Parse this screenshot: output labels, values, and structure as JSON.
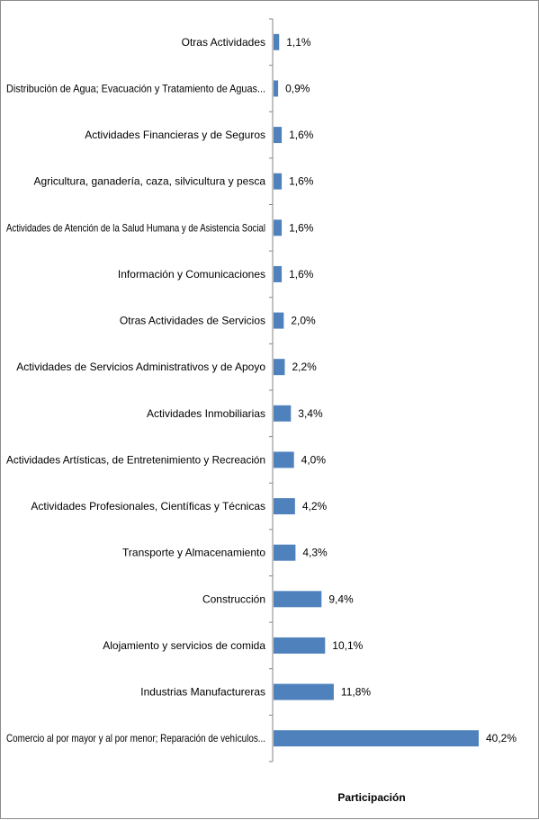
{
  "chart_data": {
    "type": "bar",
    "orientation": "horizontal",
    "categories": [
      "Otras Actividades",
      "Distribución de Agua; Evacuación y Tratamiento de Aguas...",
      "Actividades Financieras y de Seguros",
      "Agricultura, ganadería, caza, silvicultura y pesca",
      "Actividades de Atención de la Salud Humana y de Asistencia Social",
      "Información y Comunicaciones",
      "Otras Actividades de Servicios",
      "Actividades de Servicios Administrativos y de Apoyo",
      "Actividades Inmobiliarias",
      "Actividades Artísticas, de Entretenimiento y Recreación",
      "Actividades Profesionales, Científicas y Técnicas",
      "Transporte y Almacenamiento",
      "Construcción",
      "Alojamiento y servicios de comida",
      "Industrias Manufactureras",
      "Comercio al por mayor y al por menor; Reparación de vehículos..."
    ],
    "values": [
      1.1,
      0.9,
      1.6,
      1.6,
      1.6,
      1.6,
      2.0,
      2.2,
      3.4,
      4.0,
      4.2,
      4.3,
      9.4,
      10.1,
      11.8,
      40.2
    ],
    "value_labels": [
      "1,1%",
      "0,9%",
      "1,6%",
      "1,6%",
      "1,6%",
      "1,6%",
      "2,0%",
      "2,2%",
      "3,4%",
      "4,0%",
      "4,2%",
      "4,3%",
      "9,4%",
      "10,1%",
      "11,8%",
      "40,2%"
    ],
    "title": "",
    "xlabel": "Participación",
    "ylabel": "",
    "xlim": [
      0,
      40.2
    ],
    "bar_color": "#4f81bd",
    "grid": false,
    "legend": "none"
  }
}
